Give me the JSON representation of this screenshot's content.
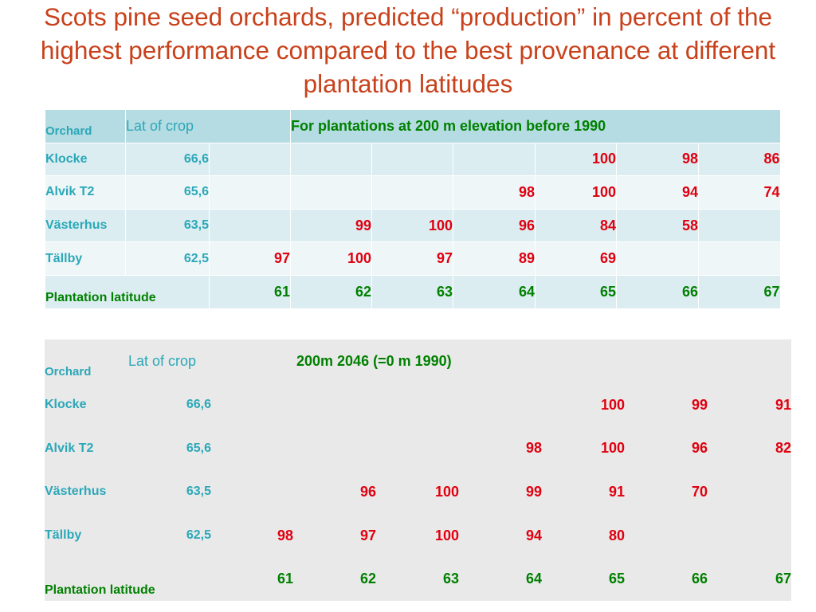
{
  "title": "Scots pine seed orchards, predicted “production” in percent of the highest performance compared to the best provenance at different plantation latitudes",
  "table1": {
    "header": {
      "orchard": "Orchard",
      "lat": "Lat of crop",
      "note": "For plantations at 200 m elevation before 1990"
    },
    "rows": [
      {
        "name": "Klocke",
        "lat": "66,6",
        "values": [
          "",
          "",
          "",
          "",
          "100",
          "98",
          "86"
        ]
      },
      {
        "name": "Alvik T2",
        "lat": "65,6",
        "values": [
          "",
          "",
          "",
          "98",
          "100",
          "94",
          "74"
        ]
      },
      {
        "name": "Västerhus",
        "lat": "63,5",
        "values": [
          "",
          "99",
          "100",
          "96",
          "84",
          "58",
          ""
        ]
      },
      {
        "name": "Tällby",
        "lat": "62,5",
        "values": [
          "97",
          "100",
          "97",
          "89",
          "69",
          "",
          ""
        ]
      }
    ],
    "footer": {
      "label": "Plantation latitude",
      "values": [
        "61",
        "62",
        "63",
        "64",
        "65",
        "66",
        "67"
      ]
    }
  },
  "table2": {
    "header": {
      "orchard": "Orchard",
      "lat": "Lat of crop",
      "note": "200m 2046 (=0 m 1990)"
    },
    "rows": [
      {
        "name": "Klocke",
        "lat": "66,6",
        "values": [
          "",
          "",
          "",
          "",
          "100",
          "99",
          "91"
        ]
      },
      {
        "name": "Alvik T2",
        "lat": "65,6",
        "values": [
          "",
          "",
          "",
          "98",
          "100",
          "96",
          "82"
        ]
      },
      {
        "name": "Västerhus",
        "lat": "63,5",
        "values": [
          "",
          "96",
          "100",
          "99",
          "91",
          "70",
          ""
        ]
      },
      {
        "name": "Tällby",
        "lat": "62,5",
        "values": [
          "98",
          "97",
          "100",
          "94",
          "80",
          "",
          ""
        ]
      }
    ],
    "footer": {
      "label": "Plantation latitude",
      "values": [
        "61",
        "62",
        "63",
        "64",
        "65",
        "66",
        "67"
      ]
    }
  },
  "colors": {
    "title": "#c8411b",
    "label": "#2aa8b8",
    "value": "#e0000f",
    "latitude": "#008000"
  }
}
